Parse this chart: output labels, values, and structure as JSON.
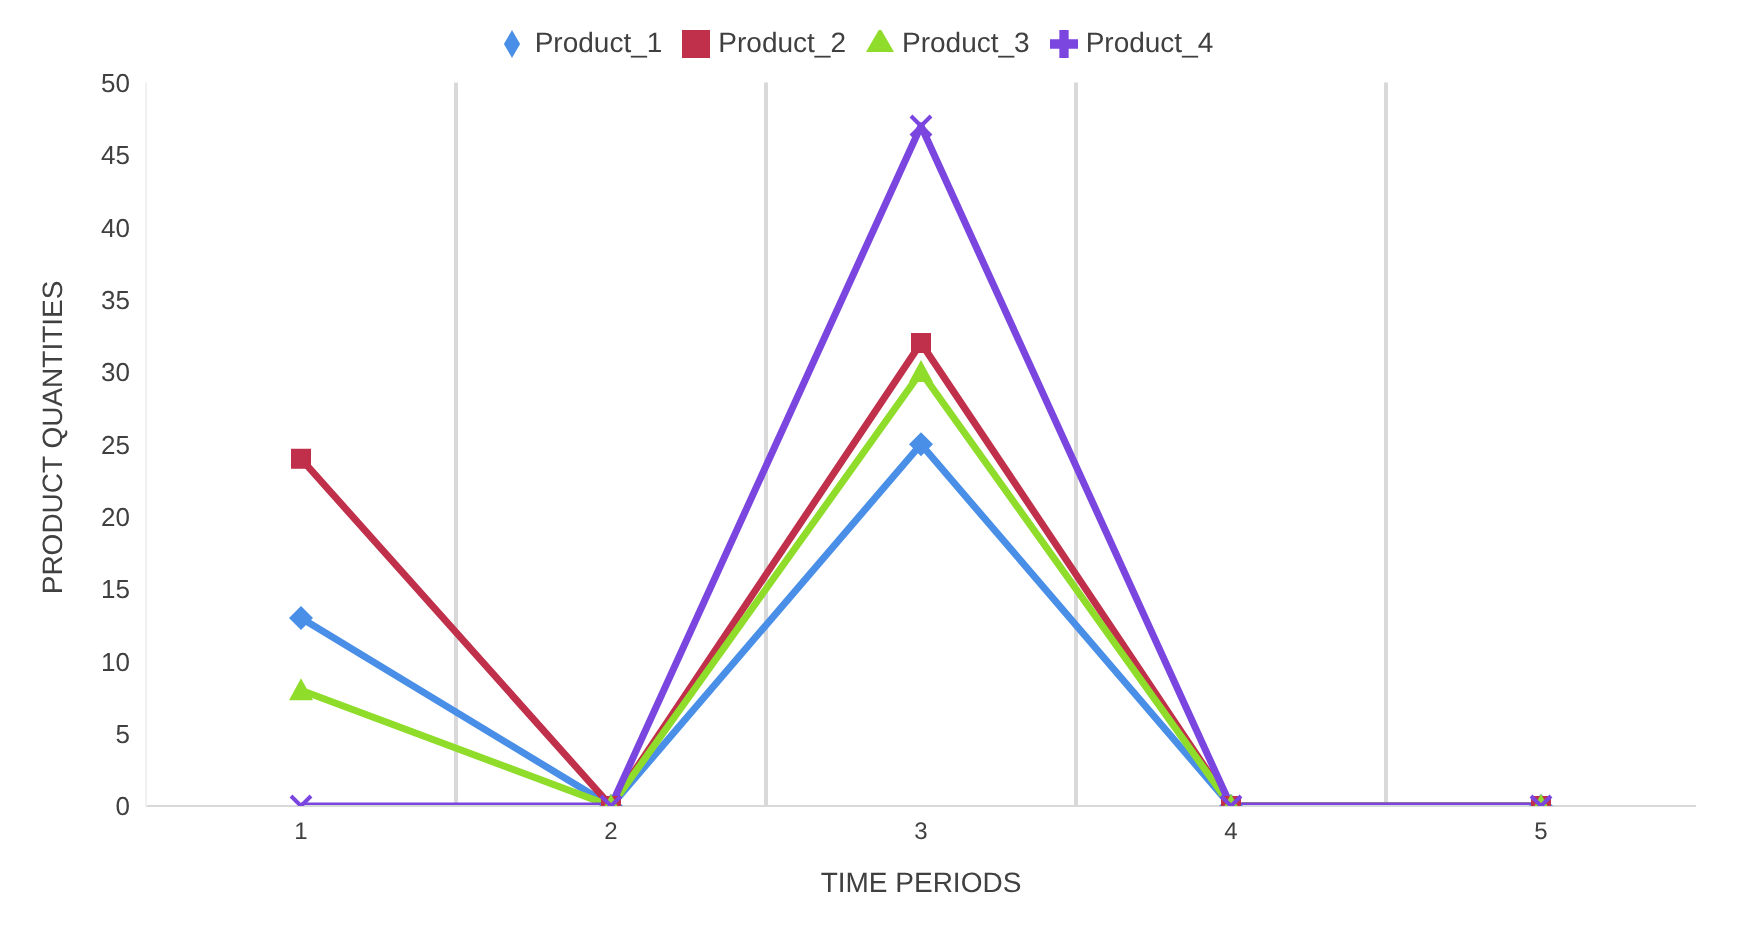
{
  "chart_data": {
    "type": "line",
    "xlabel": "TIME PERIODS",
    "ylabel": "PRODUCT QUANTITIES",
    "categories": [
      "1",
      "2",
      "3",
      "4",
      "5"
    ],
    "series": [
      {
        "name": "Product_1",
        "color": "#4a8fe7",
        "marker": "diamond",
        "values": [
          13,
          0,
          25,
          0,
          0
        ]
      },
      {
        "name": "Product_2",
        "color": "#c0304a",
        "marker": "square",
        "values": [
          24,
          0,
          32,
          0,
          0
        ]
      },
      {
        "name": "Product_3",
        "color": "#8fdc2a",
        "marker": "triangle",
        "values": [
          8,
          0,
          30,
          0,
          0
        ]
      },
      {
        "name": "Product_4",
        "color": "#7b45e0",
        "marker": "cross",
        "values": [
          0,
          0,
          47,
          0,
          0
        ]
      }
    ],
    "ylim": [
      0,
      50
    ],
    "yticks": [
      0,
      5,
      10,
      15,
      20,
      25,
      30,
      35,
      40,
      45,
      50
    ],
    "grid": "x",
    "legend": "top",
    "line_style": "solid"
  }
}
